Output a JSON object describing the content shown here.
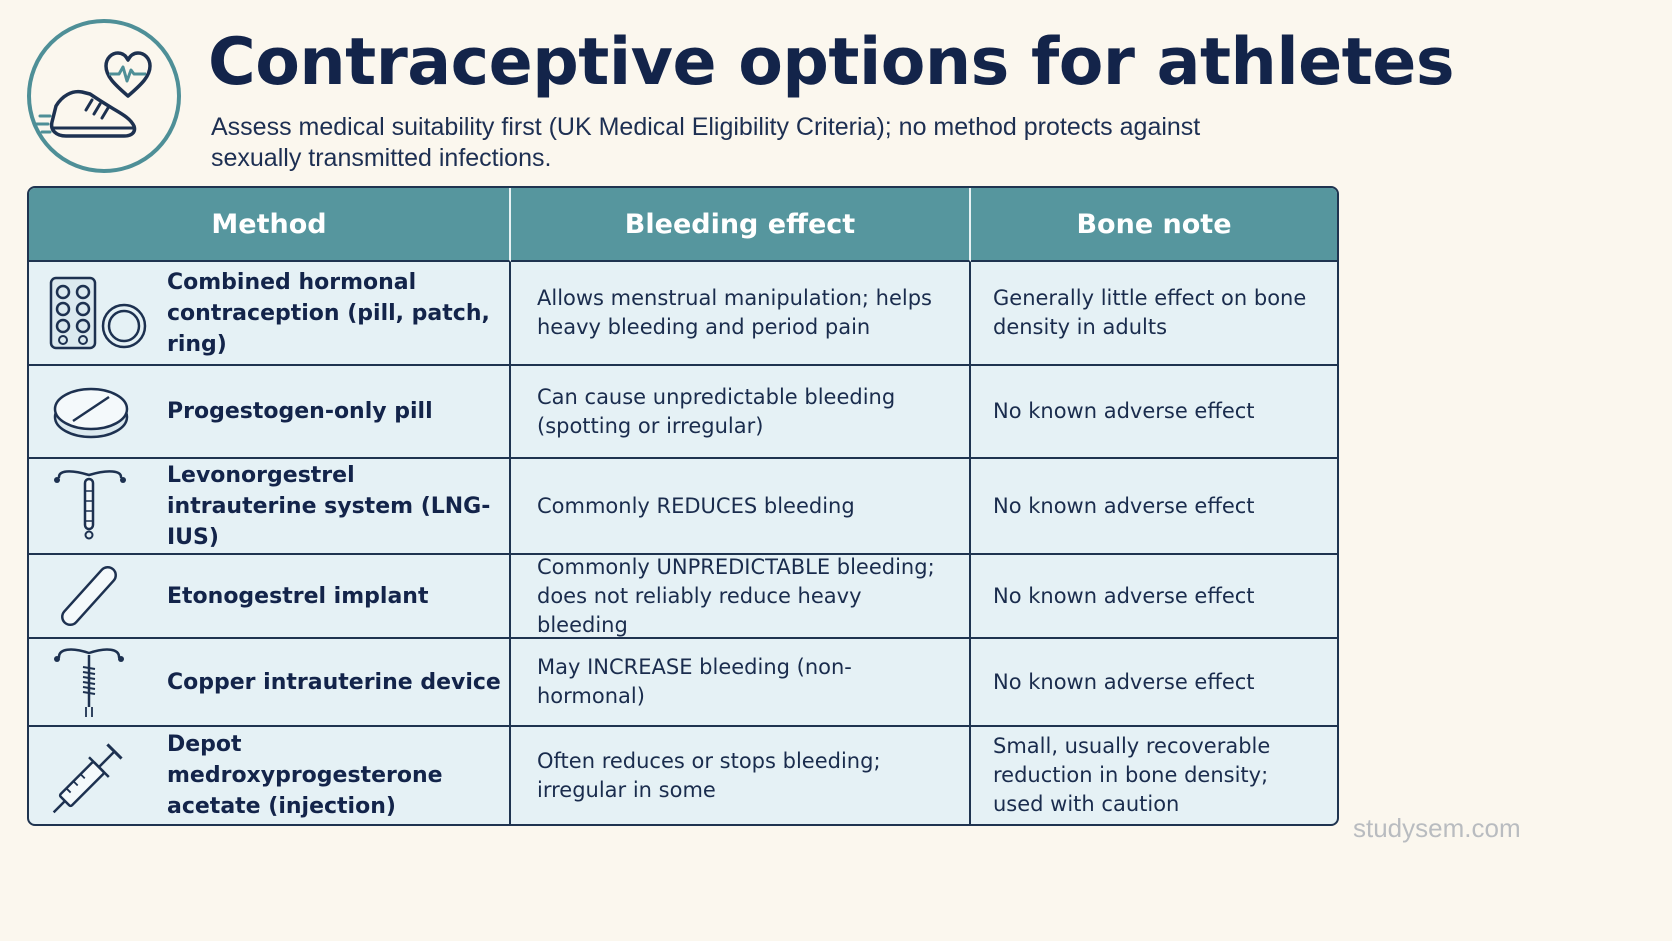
{
  "title": "Contraceptive options for athletes",
  "subtitle": "Assess medical suitability first (UK Medical Eligibility Criteria); no method protects against sexually transmitted infections.",
  "logo": {
    "icon": "running-shoe-heart-icon"
  },
  "table": {
    "headers": [
      "Method",
      "Bleeding effect",
      "Bone note"
    ],
    "rows": [
      {
        "icon": "pill-pack-ring-icon",
        "method": "Combined hormonal contraception (pill, patch, ring)",
        "bleeding": "Allows menstrual manipulation; helps heavy bleeding and period pain",
        "bone": "Generally little effect on bone density in adults"
      },
      {
        "icon": "pill-icon",
        "method": "Progestogen-only pill",
        "bleeding": "Can cause unpredictable bleeding (spotting or irregular)",
        "bone": "No known adverse effect"
      },
      {
        "icon": "iud-icon",
        "method": "Levonorgestrel intrauterine system (LNG-IUS)",
        "bleeding": "Commonly REDUCES bleeding",
        "bone": "No known adverse effect"
      },
      {
        "icon": "implant-rod-icon",
        "method": "Etonogestrel implant",
        "bleeding": "Commonly UNPREDICTABLE bleeding; does not reliably reduce heavy bleeding",
        "bone": "No known adverse effect"
      },
      {
        "icon": "copper-iud-icon",
        "method": "Copper intrauterine device",
        "bleeding": "May INCREASE bleeding (non-hormonal)",
        "bone": "No known adverse effect"
      },
      {
        "icon": "syringe-icon",
        "method": "Depot medroxyprogesterone acetate (injection)",
        "bleeding": "Often reduces or stops bleeding; irregular in some",
        "bone": "Small, usually recoverable reduction in bone density; used with caution"
      }
    ]
  },
  "watermark": "studysem.com",
  "colors": {
    "background": "#fbf7ee",
    "header": "#56969e",
    "cell": "#e5f1f5",
    "title": "#13244a",
    "border": "#1f3450"
  }
}
